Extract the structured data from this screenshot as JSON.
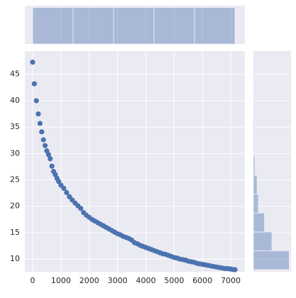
{
  "chart_data": [
    {
      "type": "scatter",
      "color": "#4c72b0",
      "x": [
        0,
        60,
        130,
        200,
        260,
        320,
        380,
        440,
        500,
        560,
        620,
        680,
        740,
        800,
        860,
        920,
        1000,
        1100,
        1200,
        1300,
        1400,
        1500,
        1600,
        1700,
        1800,
        1900,
        2000,
        2100,
        2200,
        2300,
        2400,
        2500,
        2600,
        2700,
        2800,
        2900,
        3000,
        3100,
        3200,
        3300,
        3400,
        3500,
        3600,
        3700,
        3800,
        3900,
        4000,
        4100,
        4200,
        4300,
        4400,
        4500,
        4600,
        4700,
        4800,
        4900,
        5000,
        5100,
        5200,
        5300,
        5400,
        5500,
        5600,
        5700,
        5800,
        5900,
        6000,
        6100,
        6200,
        6300,
        6400,
        6500,
        6600,
        6700,
        6800,
        6900,
        7000,
        7100,
        7150
      ],
      "values": [
        47.3,
        43.2,
        40.0,
        37.5,
        35.7,
        34.1,
        32.6,
        31.5,
        30.5,
        29.8,
        29.0,
        27.6,
        26.6,
        26.0,
        25.3,
        24.7,
        24.0,
        23.4,
        22.6,
        21.8,
        21.2,
        20.6,
        20.1,
        19.6,
        18.8,
        18.3,
        17.9,
        17.5,
        17.2,
        16.9,
        16.6,
        16.3,
        16.0,
        15.7,
        15.4,
        15.1,
        14.8,
        14.6,
        14.3,
        14.1,
        13.9,
        13.6,
        13.1,
        12.9,
        12.6,
        12.4,
        12.2,
        12.0,
        11.8,
        11.6,
        11.4,
        11.2,
        11.0,
        10.9,
        10.7,
        10.5,
        10.3,
        10.2,
        10.0,
        9.9,
        9.8,
        9.6,
        9.5,
        9.4,
        9.2,
        9.1,
        9.0,
        8.9,
        8.8,
        8.7,
        8.6,
        8.5,
        8.4,
        8.3,
        8.2,
        8.2,
        8.1,
        8.0,
        8.0
      ],
      "xlim": [
        -276,
        7500
      ],
      "ylim": [
        7.6,
        49.4
      ],
      "xticks": [
        0,
        1000,
        2000,
        3000,
        4000,
        5000,
        6000,
        7000
      ],
      "yticks": [
        10,
        15,
        20,
        25,
        30,
        35,
        40,
        45
      ],
      "grid": true
    },
    {
      "type": "histogram",
      "orientation": "vertical",
      "color": "#4c72b0",
      "bins": [
        0,
        1430,
        2860,
        4290,
        5720,
        7150
      ],
      "values": [
        16,
        16,
        16,
        16,
        16
      ],
      "xlim": [
        -276,
        7500
      ],
      "ylim": [
        0,
        16.8
      ]
    },
    {
      "type": "histogram",
      "orientation": "horizontal",
      "color": "#4c72b0",
      "bins": [
        8.0,
        11.57,
        15.15,
        18.72,
        22.29,
        25.86,
        29.44,
        33.01,
        36.58,
        40.15,
        43.73,
        47.3
      ],
      "values": [
        29,
        15,
        9,
        4,
        3,
        1.2,
        0.6,
        0.6,
        0.5,
        0.4,
        0.5
      ],
      "ylim": [
        7.6,
        49.4
      ],
      "xlim": [
        0,
        30.5
      ]
    }
  ]
}
